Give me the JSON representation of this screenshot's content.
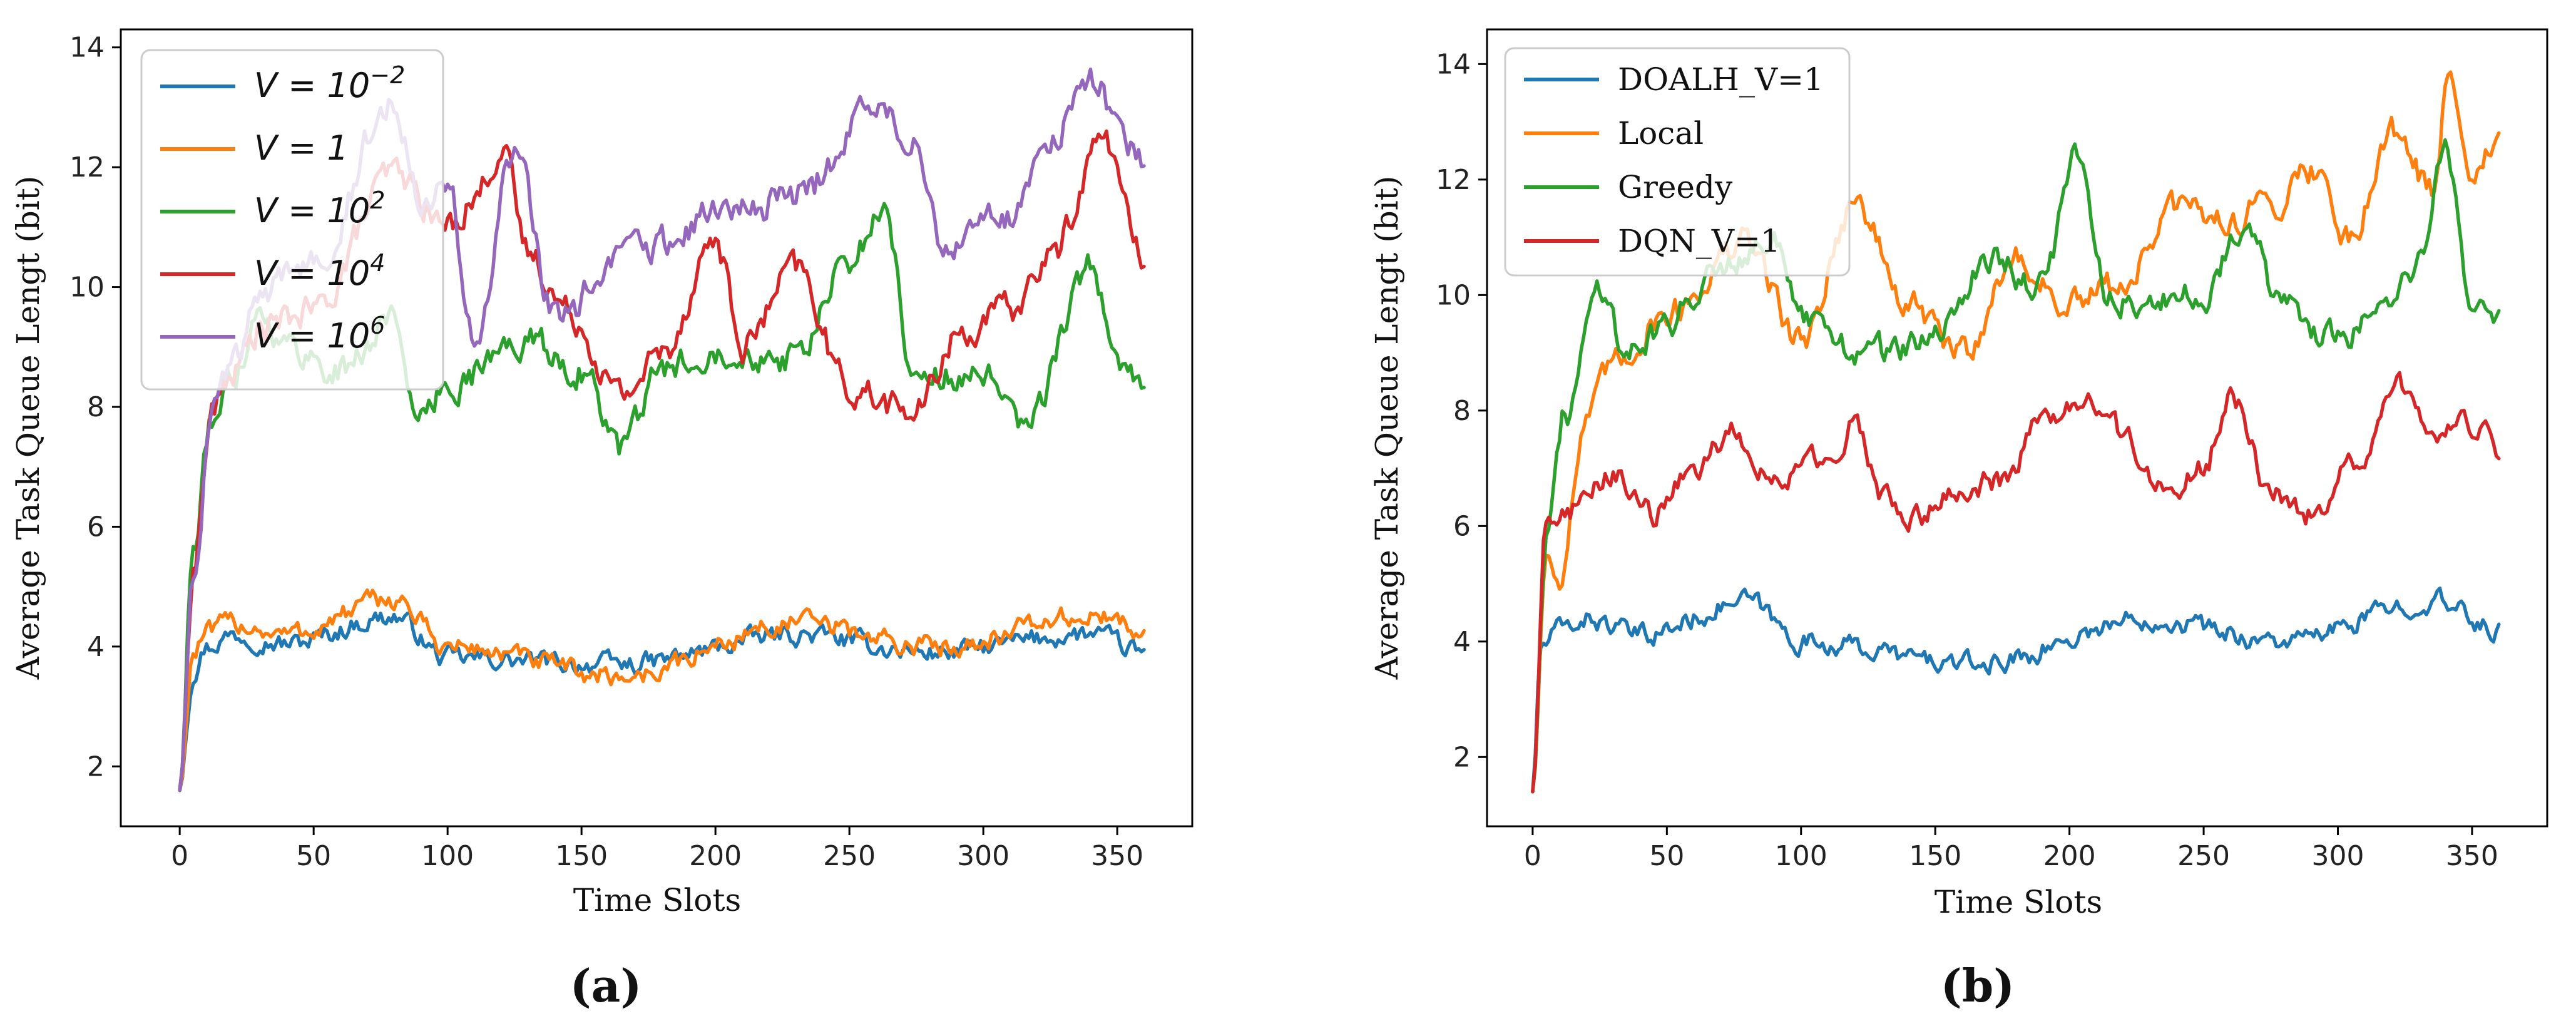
{
  "chart_data": [
    {
      "type": "line",
      "panel_label": "a",
      "xlabel": "Time Slots",
      "ylabel": "Average Task Queue  Lengt (bit)",
      "xlim": [
        -22,
        378
      ],
      "ylim": [
        1.0,
        14.3
      ],
      "xticks": [
        0,
        50,
        100,
        150,
        200,
        250,
        300,
        350
      ],
      "yticks": [
        2,
        4,
        6,
        8,
        10,
        12,
        14
      ],
      "legend_position": "top-left",
      "series": [
        {
          "name": "V = 10⁻2",
          "label_base": "V = 10",
          "label_sup": "−2",
          "color": "#1f77b4",
          "settle": 4.05,
          "amp": 0.14,
          "peak_at": 0,
          "peak_val": 0,
          "mid_scale": 0,
          "anchors": [
            [
              0,
              1.6
            ],
            [
              5,
              3.6
            ],
            [
              10,
              4.0
            ],
            [
              20,
              4.2
            ],
            [
              40,
              4.05
            ],
            [
              80,
              4.5
            ],
            [
              100,
              3.8
            ],
            [
              165,
              3.7
            ],
            [
              230,
              4.2
            ],
            [
              280,
              3.9
            ],
            [
              340,
              4.2
            ],
            [
              360,
              3.9
            ]
          ]
        },
        {
          "name": "V = 1",
          "label_base": "V = 1",
          "label_sup": "",
          "color": "#ff7f0e",
          "settle": 4.25,
          "amp": 0.15,
          "anchors": [
            [
              0,
              1.6
            ],
            [
              5,
              3.9
            ],
            [
              10,
              4.2
            ],
            [
              20,
              4.4
            ],
            [
              40,
              4.2
            ],
            [
              80,
              4.8
            ],
            [
              100,
              4.0
            ],
            [
              165,
              3.5
            ],
            [
              230,
              4.4
            ],
            [
              280,
              4.0
            ],
            [
              340,
              4.5
            ],
            [
              360,
              4.3
            ]
          ]
        },
        {
          "name": "V = 10²",
          "label_base": "V = 10",
          "label_sup": "2",
          "color": "#2ca02c",
          "settle": 8.7,
          "amp": 0.22,
          "anchors": [
            [
              0,
              1.6
            ],
            [
              5,
              5.6
            ],
            [
              12,
              7.8
            ],
            [
              20,
              8.6
            ],
            [
              30,
              9.6
            ],
            [
              40,
              9.0
            ],
            [
              60,
              8.6
            ],
            [
              80,
              9.5
            ],
            [
              90,
              7.7
            ],
            [
              100,
              8.4
            ],
            [
              130,
              9.1
            ],
            [
              150,
              8.6
            ],
            [
              165,
              7.3
            ],
            [
              180,
              8.6
            ],
            [
              200,
              9.0
            ],
            [
              230,
              8.8
            ],
            [
              250,
              10.4
            ],
            [
              262,
              11.3
            ],
            [
              275,
              8.5
            ],
            [
              300,
              8.5
            ],
            [
              315,
              7.6
            ],
            [
              340,
              10.3
            ],
            [
              352,
              8.6
            ],
            [
              360,
              8.3
            ]
          ]
        },
        {
          "name": "V = 10⁴",
          "label_base": "V = 10",
          "label_sup": "4",
          "color": "#d62728",
          "settle": 9.9,
          "amp": 0.22,
          "anchors": [
            [
              0,
              1.6
            ],
            [
              5,
              5.3
            ],
            [
              12,
              7.9
            ],
            [
              20,
              8.6
            ],
            [
              30,
              9.3
            ],
            [
              50,
              9.6
            ],
            [
              80,
              11.9
            ],
            [
              100,
              11.0
            ],
            [
              110,
              11.5
            ],
            [
              120,
              12.3
            ],
            [
              130,
              10.6
            ],
            [
              145,
              9.6
            ],
            [
              165,
              8.2
            ],
            [
              180,
              8.9
            ],
            [
              200,
              10.8
            ],
            [
              210,
              9.0
            ],
            [
              230,
              10.3
            ],
            [
              250,
              8.3
            ],
            [
              275,
              7.9
            ],
            [
              290,
              9.2
            ],
            [
              310,
              9.6
            ],
            [
              325,
              10.5
            ],
            [
              345,
              12.5
            ],
            [
              360,
              10.4
            ]
          ]
        },
        {
          "name": "V = 10⁶",
          "label_base": "V = 10",
          "label_sup": "6",
          "color": "#9467bd",
          "settle": 10.5,
          "amp": 0.24,
          "anchors": [
            [
              0,
              1.6
            ],
            [
              5,
              5.3
            ],
            [
              12,
              7.9
            ],
            [
              20,
              8.7
            ],
            [
              30,
              9.8
            ],
            [
              50,
              10.5
            ],
            [
              80,
              13.1
            ],
            [
              90,
              11.6
            ],
            [
              100,
              11.8
            ],
            [
              110,
              9.0
            ],
            [
              125,
              12.2
            ],
            [
              140,
              9.5
            ],
            [
              170,
              10.6
            ],
            [
              200,
              11.2
            ],
            [
              230,
              11.5
            ],
            [
              260,
              13.0
            ],
            [
              275,
              12.3
            ],
            [
              285,
              10.8
            ],
            [
              310,
              11.2
            ],
            [
              325,
              12.4
            ],
            [
              340,
              13.6
            ],
            [
              350,
              12.8
            ],
            [
              360,
              12.1
            ]
          ]
        }
      ]
    },
    {
      "type": "line",
      "panel_label": "b",
      "xlabel": "Time Slots",
      "ylabel": "Average Task Queue  Lengt (bit)",
      "xlim": [
        -17,
        378
      ],
      "ylim": [
        0.8,
        14.6
      ],
      "xticks": [
        0,
        50,
        100,
        150,
        200,
        250,
        300,
        350
      ],
      "yticks": [
        2,
        4,
        6,
        8,
        10,
        12,
        14
      ],
      "legend_position": "top-left",
      "series": [
        {
          "name": "DOALH_V=1",
          "color": "#1f77b4",
          "settle": 4.25,
          "amp": 0.15,
          "anchors": [
            [
              0,
              1.4
            ],
            [
              3,
              3.9
            ],
            [
              10,
              4.2
            ],
            [
              20,
              4.4
            ],
            [
              40,
              4.1
            ],
            [
              80,
              4.7
            ],
            [
              100,
              4.0
            ],
            [
              165,
              3.6
            ],
            [
              230,
              4.4
            ],
            [
              280,
              4.0
            ],
            [
              335,
              4.7
            ],
            [
              360,
              4.2
            ]
          ]
        },
        {
          "name": "Local",
          "color": "#ff7f0e",
          "settle": 9.8,
          "amp": 0.22,
          "anchors": [
            [
              0,
              1.4
            ],
            [
              5,
              5.5
            ],
            [
              10,
              5.2
            ],
            [
              20,
              7.8
            ],
            [
              30,
              8.8
            ],
            [
              50,
              9.7
            ],
            [
              80,
              10.9
            ],
            [
              100,
              9.2
            ],
            [
              120,
              11.6
            ],
            [
              140,
              9.8
            ],
            [
              160,
              9.0
            ],
            [
              180,
              10.6
            ],
            [
              200,
              9.8
            ],
            [
              220,
              10.2
            ],
            [
              240,
              11.5
            ],
            [
              260,
              11.3
            ],
            [
              275,
              11.6
            ],
            [
              290,
              12.2
            ],
            [
              305,
              11.0
            ],
            [
              320,
              12.9
            ],
            [
              335,
              11.8
            ],
            [
              342,
              13.9
            ],
            [
              350,
              12.2
            ],
            [
              360,
              12.6
            ]
          ]
        },
        {
          "name": "Greedy",
          "color": "#2ca02c",
          "settle": 9.8,
          "amp": 0.22,
          "anchors": [
            [
              0,
              1.4
            ],
            [
              5,
              5.8
            ],
            [
              12,
              7.9
            ],
            [
              25,
              10.2
            ],
            [
              35,
              9.0
            ],
            [
              50,
              9.5
            ],
            [
              70,
              10.6
            ],
            [
              90,
              11.0
            ],
            [
              100,
              9.5
            ],
            [
              125,
              9.0
            ],
            [
              150,
              9.2
            ],
            [
              170,
              10.7
            ],
            [
              190,
              10.1
            ],
            [
              202,
              12.5
            ],
            [
              215,
              10.0
            ],
            [
              230,
              9.8
            ],
            [
              250,
              10.0
            ],
            [
              265,
              11.3
            ],
            [
              280,
              9.7
            ],
            [
              300,
              9.2
            ],
            [
              315,
              9.8
            ],
            [
              330,
              10.5
            ],
            [
              340,
              12.4
            ],
            [
              350,
              10.0
            ],
            [
              360,
              9.6
            ]
          ]
        },
        {
          "name": "DQN_V=1",
          "color": "#d62728",
          "settle": 7.0,
          "amp": 0.18,
          "anchors": [
            [
              0,
              1.4
            ],
            [
              5,
              6.2
            ],
            [
              15,
              6.3
            ],
            [
              30,
              6.9
            ],
            [
              45,
              6.2
            ],
            [
              60,
              7.0
            ],
            [
              75,
              7.6
            ],
            [
              90,
              6.8
            ],
            [
              110,
              7.2
            ],
            [
              120,
              7.8
            ],
            [
              130,
              6.6
            ],
            [
              140,
              6.0
            ],
            [
              155,
              6.6
            ],
            [
              175,
              6.8
            ],
            [
              190,
              7.8
            ],
            [
              205,
              8.2
            ],
            [
              220,
              7.6
            ],
            [
              235,
              6.6
            ],
            [
              250,
              7.0
            ],
            [
              260,
              8.3
            ],
            [
              275,
              6.6
            ],
            [
              290,
              6.2
            ],
            [
              305,
              7.0
            ],
            [
              325,
              8.4
            ],
            [
              335,
              7.4
            ],
            [
              345,
              7.9
            ],
            [
              355,
              7.6
            ],
            [
              360,
              7.0
            ]
          ]
        }
      ]
    }
  ]
}
